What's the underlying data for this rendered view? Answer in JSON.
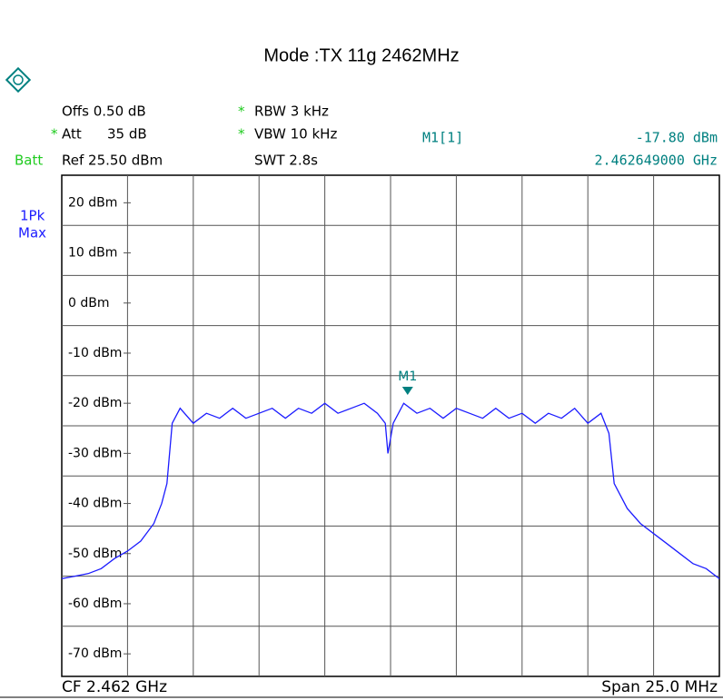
{
  "title": "Mode :TX 11g 2462MHz",
  "settings": {
    "offs": "Offs 0.50 dB",
    "att": "Att",
    "att_value": "35 dB",
    "ref": "Ref 25.50 dBm",
    "batt": "Batt",
    "rbw": "RBW 3 kHz",
    "vbw": "VBW 10 kHz",
    "swt": "SWT 2.8s",
    "star": "*",
    "trace_mode": [
      "1Pk",
      "Max"
    ]
  },
  "footer": {
    "cf": "CF 2.462 GHz",
    "span": "Span 25.0 MHz"
  },
  "chart_data": {
    "type": "line",
    "xlim": [
      2.4495,
      2.4745
    ],
    "ylim": [
      -74.5,
      25.5
    ],
    "xgrid": [
      2.452,
      2.4545,
      2.457,
      2.4595,
      2.462,
      2.4645,
      2.467,
      2.4695,
      2.472
    ],
    "ygrid": [
      15.5,
      5.5,
      -4.5,
      -14.5,
      -24.5,
      -34.5,
      -44.5,
      -54.5,
      -64.5
    ],
    "yticks": [
      {
        "value": 20,
        "label": "20 dBm"
      },
      {
        "value": 10,
        "label": "10 dBm"
      },
      {
        "value": 0,
        "label": "0 dBm"
      },
      {
        "value": -10,
        "label": "-10 dBm"
      },
      {
        "value": -20,
        "label": "-20 dBm"
      },
      {
        "value": -30,
        "label": "-30 dBm"
      },
      {
        "value": -40,
        "label": "-40 dBm"
      },
      {
        "value": -50,
        "label": "-50 dBm"
      },
      {
        "value": -60,
        "label": "-60 dBm"
      },
      {
        "value": -70,
        "label": "-70 dBm"
      }
    ],
    "grid": true,
    "series": [
      {
        "color": "#1c1cff",
        "x": [
          2.4495,
          2.45,
          2.4505,
          2.451,
          2.4515,
          2.452,
          2.4525,
          2.453,
          2.4533,
          2.4535,
          2.4537,
          2.454,
          2.4545,
          2.455,
          2.4555,
          2.456,
          2.4565,
          2.457,
          2.4575,
          2.458,
          2.4585,
          2.459,
          2.4595,
          2.46,
          2.4605,
          2.461,
          2.4615,
          2.4618,
          2.4619,
          2.4621,
          2.4625,
          2.463,
          2.4635,
          2.464,
          2.4645,
          2.465,
          2.4655,
          2.466,
          2.4665,
          2.467,
          2.4675,
          2.468,
          2.4685,
          2.469,
          2.4695,
          2.47,
          2.4703,
          2.4705,
          2.471,
          2.4715,
          2.472,
          2.4725,
          2.473,
          2.4735,
          2.474,
          2.4745
        ],
        "values": [
          -55,
          -54.5,
          -54,
          -53,
          -51,
          -49.5,
          -47.5,
          -44,
          -40,
          -36,
          -24,
          -21,
          -24,
          -22,
          -23,
          -21,
          -23,
          -22,
          -21,
          -23,
          -21,
          -22,
          -20,
          -22,
          -21,
          -20,
          -22,
          -24,
          -30,
          -24,
          -20,
          -22,
          -21,
          -23,
          -21,
          -22,
          -23,
          -21,
          -23,
          -22,
          -24,
          -22,
          -23,
          -21,
          -24,
          -22,
          -26,
          -36,
          -41,
          -44,
          -46,
          -48,
          -50,
          -52,
          -53,
          -55
        ]
      }
    ],
    "marker": {
      "label": "M1",
      "readout": "M1[1]",
      "x": 2.462649,
      "y": -17.8,
      "y_label": "-17.80 dBm",
      "x_label": "2.462649000 GHz",
      "color": "#008080"
    }
  }
}
